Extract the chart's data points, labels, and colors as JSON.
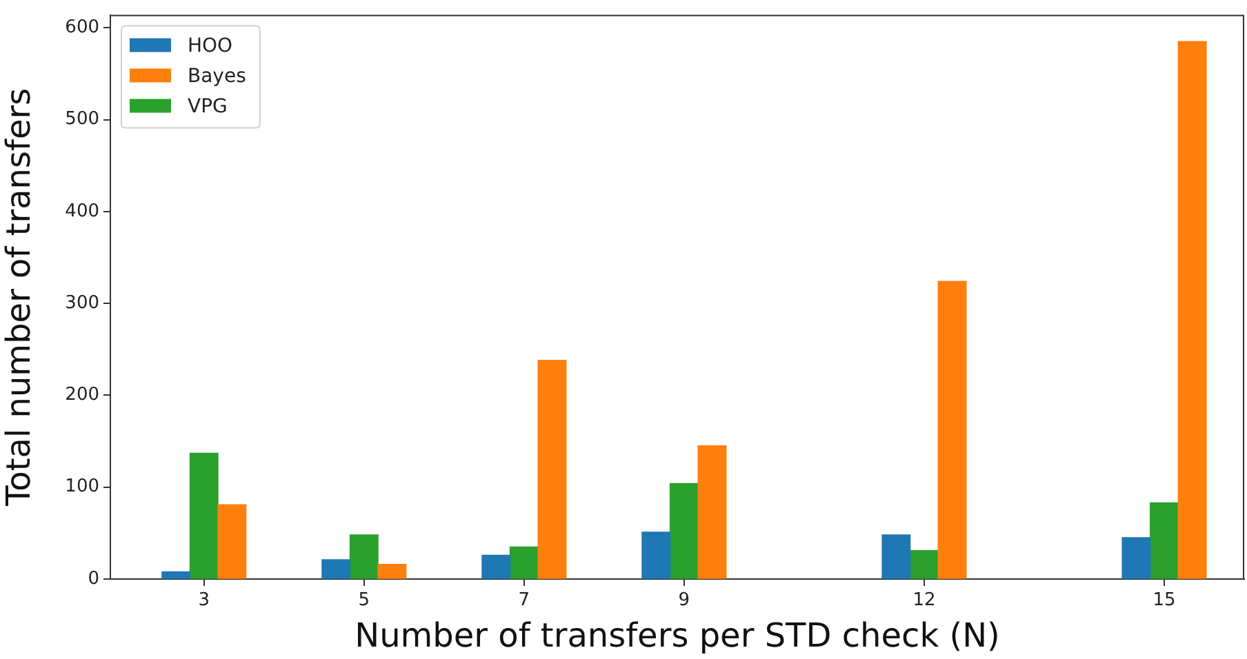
{
  "chart_data": {
    "type": "bar",
    "xlabel": "Number of transfers per STD check (N)",
    "ylabel": "Total number of transfers",
    "x": [
      3,
      5,
      7,
      9,
      12,
      15
    ],
    "series": [
      {
        "name": "HOO",
        "color": "#1f77b4",
        "values": [
          8,
          21,
          26,
          51,
          48,
          45
        ]
      },
      {
        "name": "Bayes",
        "color": "#ff7f0e",
        "values": [
          81,
          16,
          238,
          145,
          324,
          585
        ]
      },
      {
        "name": "VPG",
        "color": "#2ca02c",
        "values": [
          137,
          48,
          35,
          104,
          31,
          83
        ]
      }
    ],
    "xlim": [
      1.83,
      16.0
    ],
    "ylim": [
      0,
      614
    ],
    "xticks": [
      3,
      5,
      7,
      9,
      12,
      15
    ],
    "yticks": [
      0,
      100,
      200,
      300,
      400,
      500,
      600
    ],
    "legend": "top left"
  }
}
